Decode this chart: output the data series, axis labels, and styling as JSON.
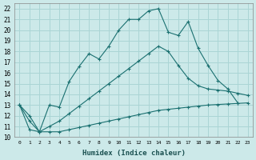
{
  "xlabel": "Humidex (Indice chaleur)",
  "bg_color": "#cce9e9",
  "grid_color": "#aad5d5",
  "line_color": "#1a7070",
  "xlim": [
    -0.5,
    23.5
  ],
  "ylim": [
    10,
    22.5
  ],
  "xticks": [
    0,
    1,
    2,
    3,
    4,
    5,
    6,
    7,
    8,
    9,
    10,
    11,
    12,
    13,
    14,
    15,
    16,
    17,
    18,
    19,
    20,
    21,
    22,
    23
  ],
  "yticks": [
    10,
    11,
    12,
    13,
    14,
    15,
    16,
    17,
    18,
    19,
    20,
    21,
    22
  ],
  "line1_x": [
    0,
    1,
    2,
    3,
    4,
    5,
    6,
    7,
    8,
    9,
    10,
    11,
    12,
    13,
    14,
    15,
    16,
    17,
    18,
    19,
    20,
    21,
    22
  ],
  "line1_y": [
    13,
    12,
    10.5,
    13.0,
    12.8,
    15.2,
    16.6,
    17.8,
    17.3,
    18.5,
    20.0,
    21.0,
    21.0,
    21.8,
    22.0,
    19.8,
    19.5,
    20.8,
    18.3,
    16.7,
    15.3,
    14.5,
    13.2
  ],
  "line2_x": [
    0,
    1,
    2,
    3,
    4,
    5,
    6,
    7,
    8,
    9,
    10,
    11,
    12,
    13,
    14,
    15,
    16,
    17,
    18,
    19,
    20,
    21,
    22,
    23
  ],
  "line2_y": [
    13,
    11.5,
    10.5,
    11.0,
    11.5,
    12.2,
    12.9,
    13.6,
    14.3,
    15.0,
    15.7,
    16.4,
    17.1,
    17.8,
    18.5,
    18.0,
    16.7,
    15.5,
    14.8,
    14.5,
    14.4,
    14.3,
    14.1,
    13.9
  ],
  "line3_x": [
    0,
    1,
    2,
    3,
    4,
    5,
    6,
    7,
    8,
    9,
    10,
    11,
    12,
    13,
    14,
    15,
    16,
    17,
    18,
    19,
    20,
    21,
    22,
    23
  ],
  "line3_y": [
    13,
    10.7,
    10.5,
    10.5,
    10.5,
    10.7,
    10.9,
    11.1,
    11.3,
    11.5,
    11.7,
    11.9,
    12.1,
    12.3,
    12.5,
    12.6,
    12.7,
    12.8,
    12.9,
    13.0,
    13.05,
    13.1,
    13.15,
    13.2
  ]
}
